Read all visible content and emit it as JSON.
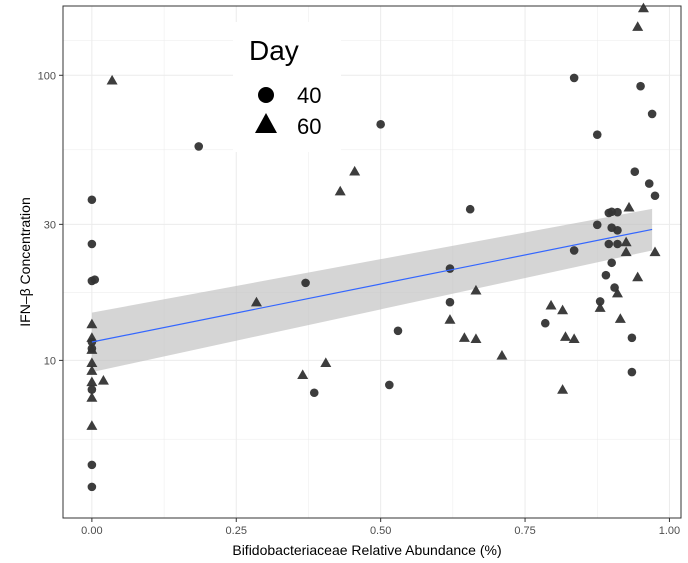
{
  "chart_data": {
    "type": "scatter",
    "xlabel": "Bifidobacteriaceae Relative Abundance (%)",
    "ylabel": "IFN–β Concentration",
    "xlim": [
      -0.05,
      1.02
    ],
    "ylim": [
      2.8,
      175
    ],
    "y_scale": "log10",
    "x_ticks": [
      0,
      0.25,
      0.5,
      0.75,
      1.0
    ],
    "x_tick_labels": [
      "0.00",
      "0.25",
      "0.50",
      "0.75",
      "1.00"
    ],
    "y_ticks": [
      10,
      30,
      100
    ],
    "y_tick_labels": [
      "10",
      "30",
      "100"
    ],
    "grid": true,
    "legend": {
      "title": "Day",
      "placement": "top-left",
      "entries": [
        {
          "label": "40",
          "shape": "circle"
        },
        {
          "label": "60",
          "shape": "triangle"
        }
      ]
    },
    "colors": {
      "point": "#333333",
      "fit_line": "#3366FF",
      "band": "#BEBEBE",
      "grid": "#EBEBEB"
    },
    "series": [
      {
        "name": "40",
        "shape": "circle",
        "points": [
          [
            0.0,
            36.6
          ],
          [
            0.0,
            25.6
          ],
          [
            0.0,
            19.0
          ],
          [
            0.005,
            19.2
          ],
          [
            0.0,
            11.6
          ],
          [
            0.0,
            11.0
          ],
          [
            0.0,
            7.9
          ],
          [
            0.0,
            4.3
          ],
          [
            0.0,
            3.6
          ],
          [
            0.185,
            56.3
          ],
          [
            0.37,
            18.7
          ],
          [
            0.385,
            7.7
          ],
          [
            0.5,
            67.3
          ],
          [
            0.515,
            8.2
          ],
          [
            0.53,
            12.7
          ],
          [
            0.62,
            21.0
          ],
          [
            0.62,
            16.0
          ],
          [
            0.655,
            33.9
          ],
          [
            0.785,
            13.5
          ],
          [
            0.835,
            97.9
          ],
          [
            0.835,
            24.3
          ],
          [
            0.875,
            61.9
          ],
          [
            0.875,
            29.9
          ],
          [
            0.88,
            16.1
          ],
          [
            0.89,
            19.9
          ],
          [
            0.895,
            32.9
          ],
          [
            0.895,
            25.6
          ],
          [
            0.9,
            29.2
          ],
          [
            0.9,
            22.0
          ],
          [
            0.905,
            18.0
          ],
          [
            0.91,
            28.6
          ],
          [
            0.91,
            25.6
          ],
          [
            0.935,
            12.0
          ],
          [
            0.935,
            9.1
          ],
          [
            0.94,
            45.9
          ],
          [
            0.95,
            91.6
          ],
          [
            0.965,
            41.7
          ],
          [
            0.97,
            73.2
          ],
          [
            0.975,
            37.8
          ],
          [
            0.9,
            33.2
          ],
          [
            0.91,
            33.1
          ]
        ]
      },
      {
        "name": "60",
        "shape": "triangle",
        "points": [
          [
            0.0,
            13.4
          ],
          [
            0.0,
            12.0
          ],
          [
            0.0,
            10.9
          ],
          [
            0.0,
            9.8
          ],
          [
            0.0,
            9.2
          ],
          [
            0.0,
            8.4
          ],
          [
            0.0,
            7.4
          ],
          [
            0.0,
            5.9
          ],
          [
            0.02,
            8.5
          ],
          [
            0.035,
            96.0
          ],
          [
            0.285,
            16.0
          ],
          [
            0.365,
            8.9
          ],
          [
            0.405,
            9.8
          ],
          [
            0.43,
            39.2
          ],
          [
            0.455,
            46.0
          ],
          [
            0.62,
            13.9
          ],
          [
            0.645,
            12.0
          ],
          [
            0.665,
            17.6
          ],
          [
            0.665,
            11.9
          ],
          [
            0.71,
            10.4
          ],
          [
            0.795,
            15.6
          ],
          [
            0.815,
            15.0
          ],
          [
            0.815,
            7.9
          ],
          [
            0.82,
            12.1
          ],
          [
            0.835,
            11.9
          ],
          [
            0.88,
            15.3
          ],
          [
            0.91,
            17.2
          ],
          [
            0.915,
            14.0
          ],
          [
            0.925,
            26.0
          ],
          [
            0.925,
            24.0
          ],
          [
            0.93,
            34.4
          ],
          [
            0.945,
            148.0
          ],
          [
            0.945,
            19.6
          ],
          [
            0.955,
            172.0
          ],
          [
            0.975,
            24.0
          ]
        ]
      }
    ],
    "fit": {
      "type": "linear",
      "x_range": [
        0.0,
        0.97
      ],
      "y_at_start": 11.6,
      "y_at_end": 28.8,
      "ci_lower_start": 9.1,
      "ci_upper_start": 14.7,
      "ci_lower_end": 24.3,
      "ci_upper_end": 34.0
    }
  }
}
